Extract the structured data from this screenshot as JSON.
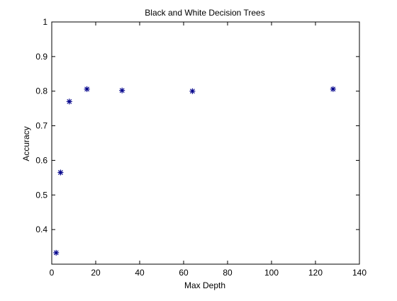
{
  "chart_data": {
    "type": "scatter",
    "title": "Black and White Decision Trees",
    "xlabel": "Max Depth",
    "ylabel": "Accuracy",
    "xlim": [
      0,
      140
    ],
    "ylim": [
      0.3,
      1
    ],
    "xticks": [
      0,
      20,
      40,
      60,
      80,
      100,
      120,
      140
    ],
    "yticks": [
      0.4,
      0.5,
      0.6,
      0.7,
      0.8,
      0.9,
      1
    ],
    "ytick_labels": [
      "0.4",
      "0.5",
      "0.6",
      "0.7",
      "0.8",
      "0.9",
      "1"
    ],
    "grid": false,
    "marker": "*",
    "color": "#00008b",
    "series": [
      {
        "x": [
          2,
          4,
          8,
          16,
          32,
          64,
          128
        ],
        "y": [
          0.333,
          0.565,
          0.77,
          0.806,
          0.802,
          0.8,
          0.806
        ]
      }
    ]
  }
}
